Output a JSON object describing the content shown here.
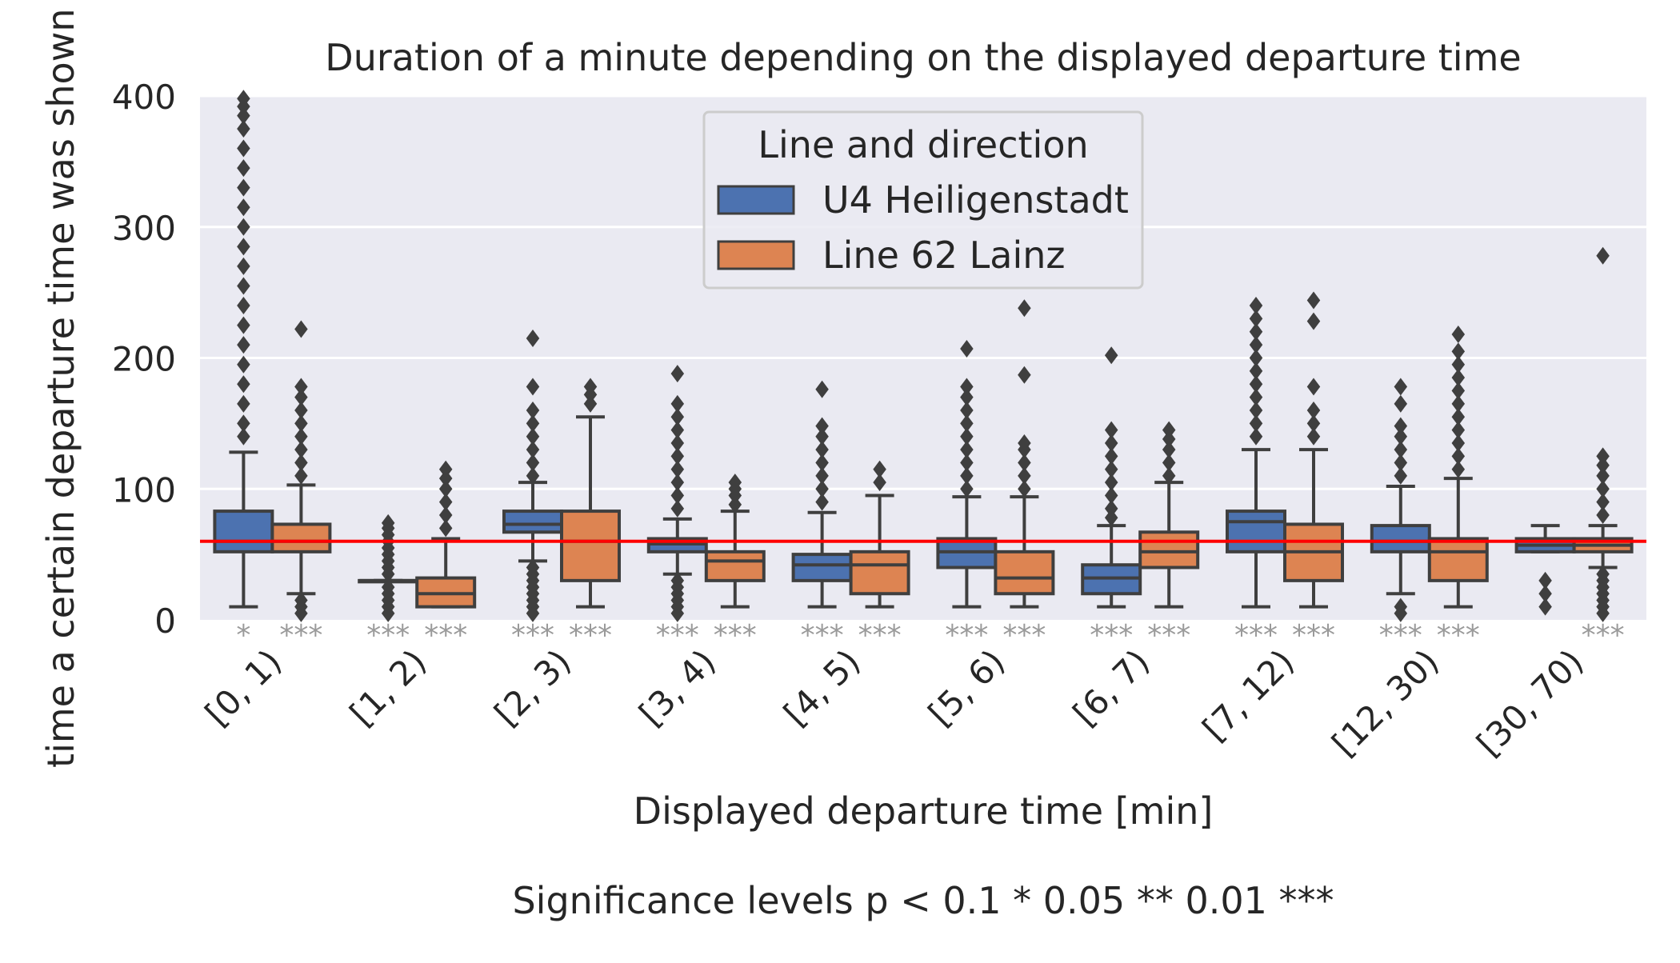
{
  "chart_data": {
    "type": "box",
    "title": "Duration of a minute depending on the displayed departure time",
    "xlabel": "Displayed departure time [min]",
    "ylabel": "time a certain departure time was shown [s]",
    "footnote": "Significance levels p < 0.1 * 0.05 ** 0.01 ***",
    "ylim": [
      0,
      400
    ],
    "yticks": [
      0,
      100,
      200,
      300,
      400
    ],
    "grid": true,
    "reference_line": {
      "y": 60,
      "color": "#ff0000"
    },
    "legend": {
      "title": "Line and direction",
      "placement": "top-center"
    },
    "categories": [
      "[0, 1)",
      "[1, 2)",
      "[2, 3)",
      "[3, 4)",
      "[4, 5)",
      "[5, 6)",
      "[6, 7)",
      "[7, 12)",
      "[12, 30)",
      "[30, 70)"
    ],
    "series": [
      {
        "name": "U4 Heiligenstadt",
        "color": "#4c72b0",
        "boxes": [
          {
            "min": 10,
            "q1": 52,
            "median": 60,
            "q3": 83,
            "max": 128,
            "outliers": [
              140,
              150,
              165,
              180,
              195,
              210,
              225,
              240,
              255,
              270,
              285,
              300,
              315,
              330,
              345,
              360,
              375,
              385,
              392,
              398
            ]
          },
          {
            "min": 30,
            "q1": 30,
            "median": 30,
            "q3": 30,
            "max": 30,
            "outliers": [
              5,
              10,
              15,
              20,
              25,
              35,
              40,
              45,
              50,
              55,
              60,
              65,
              70,
              74
            ]
          },
          {
            "min": 45,
            "q1": 67,
            "median": 73,
            "q3": 83,
            "max": 105,
            "outliers": [
              5,
              10,
              15,
              20,
              25,
              30,
              35,
              40,
              110,
              120,
              130,
              140,
              150,
              160,
              178,
              215
            ]
          },
          {
            "min": 35,
            "q1": 52,
            "median": 58,
            "q3": 62,
            "max": 77,
            "outliers": [
              5,
              10,
              15,
              20,
              25,
              30,
              85,
              95,
              105,
              115,
              125,
              135,
              145,
              155,
              165,
              188
            ]
          },
          {
            "min": 10,
            "q1": 30,
            "median": 42,
            "q3": 50,
            "max": 82,
            "outliers": [
              90,
              100,
              110,
              120,
              130,
              140,
              148,
              176
            ]
          },
          {
            "min": 10,
            "q1": 40,
            "median": 52,
            "q3": 62,
            "max": 94,
            "outliers": [
              100,
              110,
              120,
              130,
              140,
              150,
              160,
              170,
              178,
              207
            ]
          },
          {
            "min": 10,
            "q1": 20,
            "median": 32,
            "q3": 42,
            "max": 72,
            "outliers": [
              78,
              85,
              95,
              105,
              115,
              125,
              135,
              145,
              202
            ]
          },
          {
            "min": 10,
            "q1": 52,
            "median": 75,
            "q3": 83,
            "max": 130,
            "outliers": [
              140,
              150,
              160,
              170,
              180,
              190,
              200,
              210,
              220,
              230,
              240
            ]
          },
          {
            "min": 20,
            "q1": 52,
            "median": 60,
            "q3": 72,
            "max": 102,
            "outliers": [
              5,
              10,
              110,
              120,
              130,
              140,
              148,
              165,
              178
            ]
          },
          {
            "min": 52,
            "q1": 52,
            "median": 57,
            "q3": 62,
            "max": 72,
            "outliers": [
              10,
              20,
              30
            ]
          }
        ]
      },
      {
        "name": "Line 62 Lainz",
        "color": "#dd8452",
        "boxes": [
          {
            "min": 20,
            "q1": 52,
            "median": 60,
            "q3": 73,
            "max": 103,
            "outliers": [
              5,
              10,
              15,
              110,
              120,
              130,
              140,
              150,
              160,
              170,
              178,
              222
            ]
          },
          {
            "min": 10,
            "q1": 10,
            "median": 20,
            "q3": 32,
            "max": 62,
            "outliers": [
              70,
              80,
              90,
              100,
              108,
              115
            ]
          },
          {
            "min": 10,
            "q1": 30,
            "median": 60,
            "q3": 83,
            "max": 155,
            "outliers": [
              165,
              172,
              178
            ]
          },
          {
            "min": 10,
            "q1": 30,
            "median": 45,
            "q3": 52,
            "max": 83,
            "outliers": [
              88,
              95,
              100,
              105
            ]
          },
          {
            "min": 10,
            "q1": 20,
            "median": 42,
            "q3": 52,
            "max": 95,
            "outliers": [
              105,
              115
            ]
          },
          {
            "min": 10,
            "q1": 20,
            "median": 32,
            "q3": 52,
            "max": 94,
            "outliers": [
              100,
              110,
              120,
              130,
              135,
              187,
              238
            ]
          },
          {
            "min": 10,
            "q1": 40,
            "median": 52,
            "q3": 67,
            "max": 105,
            "outliers": [
              110,
              120,
              130,
              138,
              145
            ]
          },
          {
            "min": 10,
            "q1": 30,
            "median": 52,
            "q3": 73,
            "max": 130,
            "outliers": [
              140,
              150,
              160,
              178,
              228,
              244
            ]
          },
          {
            "min": 10,
            "q1": 30,
            "median": 52,
            "q3": 62,
            "max": 108,
            "outliers": [
              115,
              125,
              135,
              145,
              155,
              165,
              175,
              185,
              195,
              205,
              218
            ]
          },
          {
            "min": 40,
            "q1": 52,
            "median": 57,
            "q3": 62,
            "max": 72,
            "outliers": [
              5,
              10,
              15,
              20,
              25,
              30,
              35,
              80,
              90,
              100,
              110,
              118,
              125,
              278
            ]
          }
        ]
      }
    ],
    "significance": [
      [
        "*",
        "***"
      ],
      [
        "***",
        "***"
      ],
      [
        "***",
        "***"
      ],
      [
        "***",
        "***"
      ],
      [
        "***",
        "***"
      ],
      [
        "***",
        "***"
      ],
      [
        "***",
        "***"
      ],
      [
        "***",
        "***"
      ],
      [
        "***",
        "***"
      ],
      [
        "",
        "***"
      ]
    ]
  }
}
